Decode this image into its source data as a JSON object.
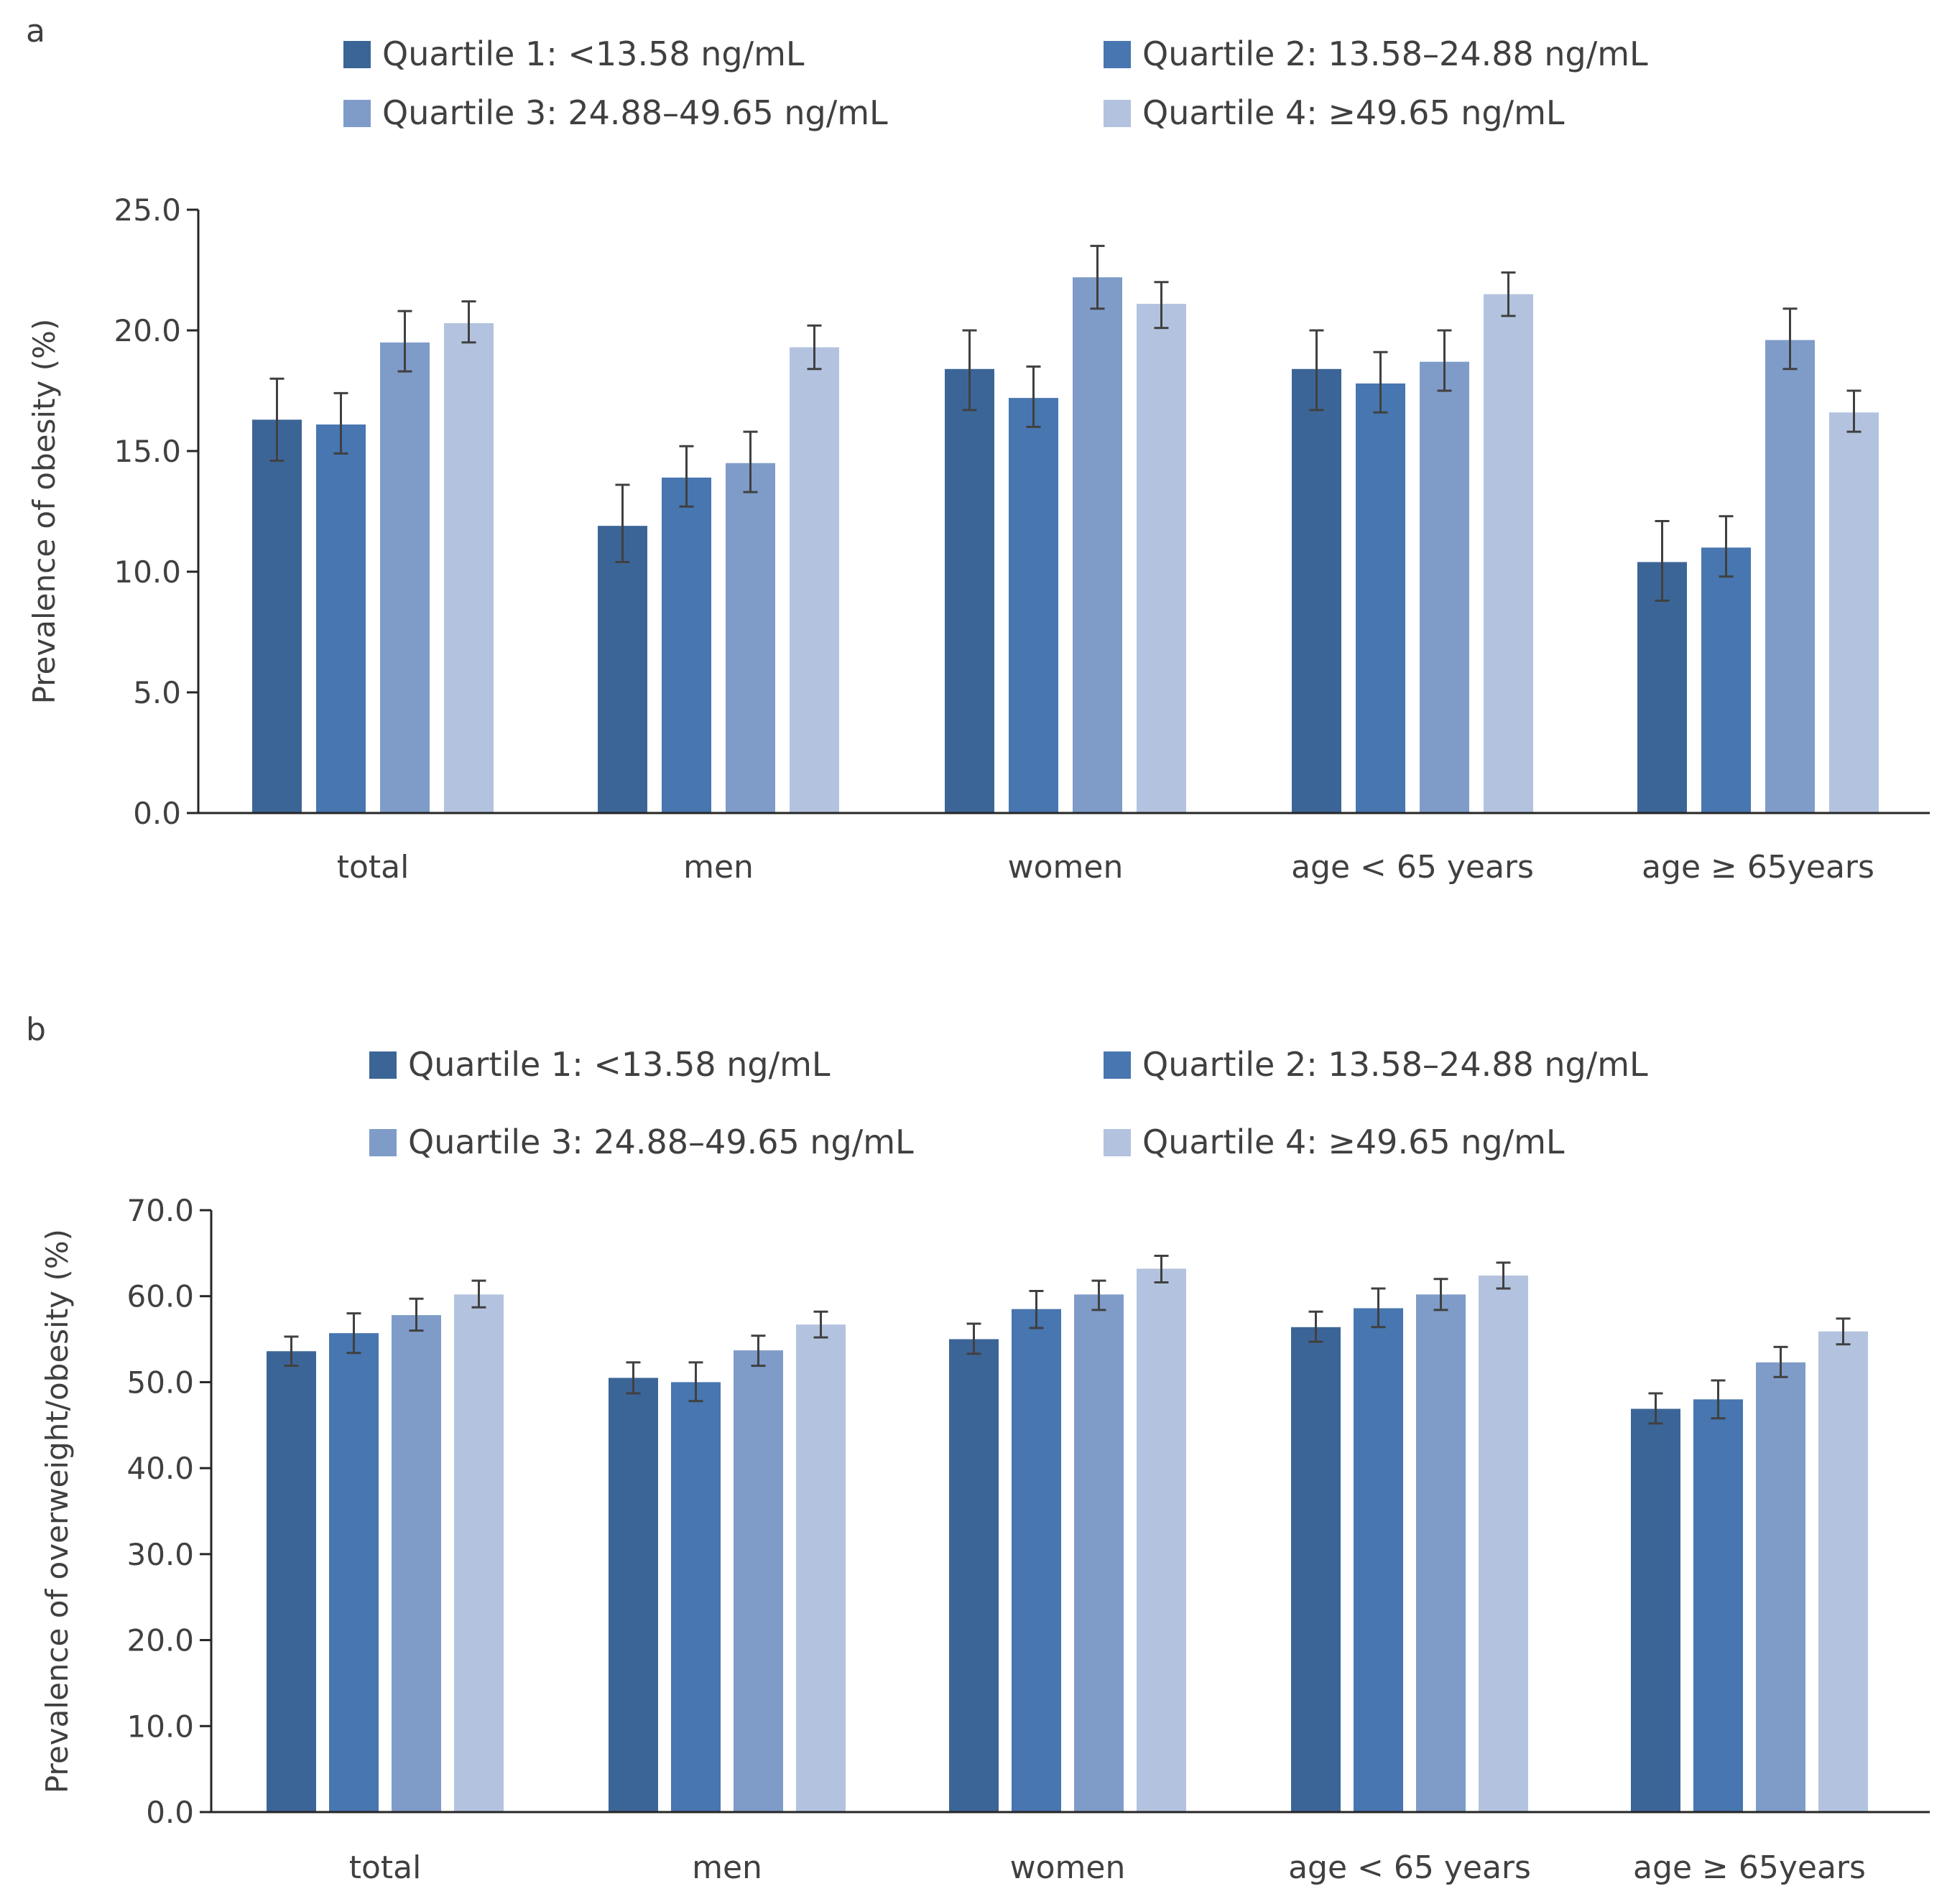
{
  "chart_data": [
    {
      "type": "bar",
      "panel_label": "a",
      "title": "",
      "xlabel": "",
      "ylabel": "Prevalence of obesity (%)",
      "ylim": [
        0,
        25
      ],
      "yticks": [
        "0.0",
        "5.0",
        "10.0",
        "15.0",
        "20.0",
        "25.0"
      ],
      "yticks_values": [
        0,
        5,
        10,
        15,
        20,
        25
      ],
      "categories": [
        "total",
        "men",
        "women",
        "age < 65 years",
        "age ≥ 65years"
      ],
      "legend_placement": "top",
      "series": [
        {
          "name": "Quartile 1: <13.58 ng/mL",
          "color": "#3c6597",
          "values": [
            16.3,
            11.9,
            18.4,
            18.4,
            10.4
          ],
          "ci_low": [
            14.6,
            10.4,
            16.7,
            16.7,
            8.8
          ],
          "ci_high": [
            18.0,
            13.6,
            20.0,
            20.0,
            12.1
          ]
        },
        {
          "name": "Quartile 2: 13.58–24.88 ng/mL",
          "color": "#4776b0",
          "values": [
            16.1,
            13.9,
            17.2,
            17.8,
            11.0
          ],
          "ci_low": [
            14.9,
            12.7,
            16.0,
            16.6,
            9.8
          ],
          "ci_high": [
            17.4,
            15.2,
            18.5,
            19.1,
            12.3
          ]
        },
        {
          "name": "Quartile 3: 24.88–49.65 ng/mL",
          "color": "#7f9cc9",
          "values": [
            19.5,
            14.5,
            22.2,
            18.7,
            19.6
          ],
          "ci_low": [
            18.3,
            13.3,
            20.9,
            17.5,
            18.4
          ],
          "ci_high": [
            20.8,
            15.8,
            23.5,
            20.0,
            20.9
          ]
        },
        {
          "name": "Quartile 4: ≥49.65 ng/mL",
          "color": "#b3c3df",
          "values": [
            20.3,
            19.3,
            21.1,
            21.5,
            16.6
          ],
          "ci_low": [
            19.5,
            18.4,
            20.1,
            20.6,
            15.8
          ],
          "ci_high": [
            21.2,
            20.2,
            22.0,
            22.4,
            17.5
          ]
        }
      ]
    },
    {
      "type": "bar",
      "panel_label": "b",
      "title": "",
      "xlabel": "",
      "ylabel": "Prevalence of overweight/obesity (%)",
      "ylim": [
        0,
        70
      ],
      "yticks": [
        "0.0",
        "10.0",
        "20.0",
        "30.0",
        "40.0",
        "50.0",
        "60.0",
        "70.0"
      ],
      "yticks_values": [
        0,
        10,
        20,
        30,
        40,
        50,
        60,
        70
      ],
      "categories": [
        "total",
        "men",
        "women",
        "age < 65 years",
        "age ≥ 65years"
      ],
      "legend_placement": "top",
      "series": [
        {
          "name": "Quartile 1: <13.58 ng/mL",
          "color": "#3c6597",
          "values": [
            53.6,
            50.5,
            55.0,
            56.4,
            46.9
          ],
          "ci_low": [
            51.9,
            48.7,
            53.3,
            54.7,
            45.2
          ],
          "ci_high": [
            55.3,
            52.3,
            56.8,
            58.2,
            48.7
          ]
        },
        {
          "name": "Quartile 2: 13.58–24.88 ng/mL",
          "color": "#4776b0",
          "values": [
            55.7,
            50.0,
            58.5,
            58.6,
            48.0
          ],
          "ci_low": [
            53.4,
            47.8,
            56.3,
            56.4,
            45.8
          ],
          "ci_high": [
            58.0,
            52.3,
            60.6,
            60.9,
            50.2
          ]
        },
        {
          "name": "Quartile 3: 24.88–49.65 ng/mL",
          "color": "#7f9cc9",
          "values": [
            57.8,
            53.7,
            60.2,
            60.2,
            52.3
          ],
          "ci_low": [
            56.0,
            51.9,
            58.4,
            58.4,
            50.6
          ],
          "ci_high": [
            59.7,
            55.4,
            61.8,
            62.0,
            54.1
          ]
        },
        {
          "name": "Quartile 4: ≥49.65 ng/mL",
          "color": "#b3c3df",
          "values": [
            60.2,
            56.7,
            63.2,
            62.4,
            55.9
          ],
          "ci_low": [
            58.7,
            55.2,
            61.6,
            60.9,
            54.4
          ],
          "ci_high": [
            61.8,
            58.2,
            64.7,
            63.9,
            57.4
          ]
        }
      ]
    }
  ]
}
